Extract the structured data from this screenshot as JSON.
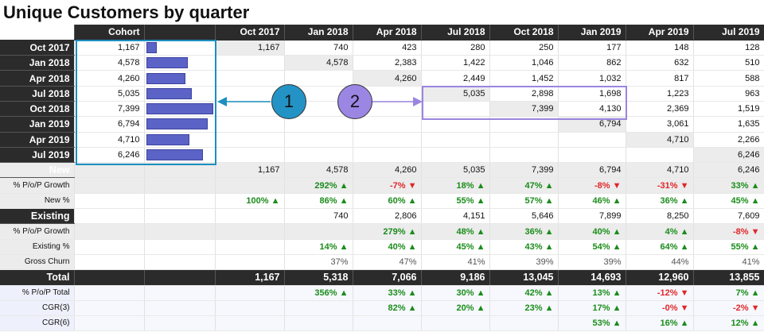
{
  "title": "Unique Customers by quarter",
  "header": {
    "cohort_label": "Cohort",
    "columns": [
      "Oct 2017",
      "Jan 2018",
      "Apr 2018",
      "Jul 2018",
      "Oct 2018",
      "Jan 2019",
      "Apr 2019",
      "Jul 2019"
    ]
  },
  "cohorts": [
    {
      "label": "Oct 2017",
      "size": "1,167",
      "bar": 0.16,
      "values": [
        "1,167",
        "740",
        "423",
        "280",
        "250",
        "177",
        "148",
        "128"
      ]
    },
    {
      "label": "Jan 2018",
      "size": "4,578",
      "bar": 0.62,
      "values": [
        "",
        "4,578",
        "2,383",
        "1,422",
        "1,046",
        "862",
        "632",
        "510"
      ]
    },
    {
      "label": "Apr 2018",
      "size": "4,260",
      "bar": 0.58,
      "values": [
        "",
        "",
        "4,260",
        "2,449",
        "1,452",
        "1,032",
        "817",
        "588"
      ]
    },
    {
      "label": "Jul 2018",
      "size": "5,035",
      "bar": 0.68,
      "values": [
        "",
        "",
        "",
        "5,035",
        "2,898",
        "1,698",
        "1,223",
        "963"
      ]
    },
    {
      "label": "Oct 2018",
      "size": "7,399",
      "bar": 1.0,
      "values": [
        "",
        "",
        "",
        "",
        "7,399",
        "4,130",
        "2,369",
        "1,519"
      ]
    },
    {
      "label": "Jan 2019",
      "size": "6,794",
      "bar": 0.92,
      "values": [
        "",
        "",
        "",
        "",
        "",
        "6,794",
        "3,061",
        "1,635"
      ]
    },
    {
      "label": "Apr 2019",
      "size": "4,710",
      "bar": 0.64,
      "values": [
        "",
        "",
        "",
        "",
        "",
        "",
        "4,710",
        "2,266"
      ]
    },
    {
      "label": "Jul 2019",
      "size": "6,246",
      "bar": 0.85,
      "values": [
        "",
        "",
        "",
        "",
        "",
        "",
        "",
        "6,246"
      ]
    }
  ],
  "new": {
    "label": "New",
    "values": [
      "1,167",
      "4,578",
      "4,260",
      "5,035",
      "7,399",
      "6,794",
      "4,710",
      "6,246"
    ]
  },
  "new_growth": {
    "label": "% P/o/P Growth",
    "values": [
      "",
      "292% ▲",
      "-7% ▼",
      "18% ▲",
      "47% ▲",
      "-8% ▼",
      "-31% ▼",
      "33% ▲"
    ]
  },
  "new_pct": {
    "label": "New %",
    "values": [
      "100% ▲",
      "86% ▲",
      "60% ▲",
      "55% ▲",
      "57% ▲",
      "46% ▲",
      "36% ▲",
      "45% ▲"
    ]
  },
  "existing": {
    "label": "Existing",
    "values": [
      "",
      "740",
      "2,806",
      "4,151",
      "5,646",
      "7,899",
      "8,250",
      "7,609"
    ]
  },
  "existing_growth": {
    "label": "% P/o/P Growth",
    "values": [
      "",
      "",
      "279% ▲",
      "48% ▲",
      "36% ▲",
      "40% ▲",
      "4% ▲",
      "-8% ▼"
    ]
  },
  "existing_pct": {
    "label": "Existing %",
    "values": [
      "",
      "14% ▲",
      "40% ▲",
      "45% ▲",
      "43% ▲",
      "54% ▲",
      "64% ▲",
      "55% ▲"
    ]
  },
  "gross_churn": {
    "label": "Gross Churn",
    "values": [
      "",
      "37%",
      "47%",
      "41%",
      "39%",
      "39%",
      "44%",
      "41%"
    ]
  },
  "total": {
    "label": "Total",
    "values": [
      "1,167",
      "5,318",
      "7,066",
      "9,186",
      "13,045",
      "14,693",
      "12,960",
      "13,855"
    ]
  },
  "total_growth": {
    "label": "% P/o/P Total",
    "values": [
      "",
      "356% ▲",
      "33% ▲",
      "30% ▲",
      "42% ▲",
      "13% ▲",
      "-12% ▼",
      "7% ▲"
    ]
  },
  "cgr3": {
    "label": "CGR(3)",
    "values": [
      "",
      "",
      "82% ▲",
      "20% ▲",
      "23% ▲",
      "17% ▲",
      "-0% ▼",
      "-2% ▼"
    ]
  },
  "cgr6": {
    "label": "CGR(6)",
    "values": [
      "",
      "",
      "",
      "",
      "",
      "53% ▲",
      "16% ▲",
      "12% ▲"
    ]
  },
  "callouts": {
    "one": "1",
    "two": "2"
  },
  "colors": {
    "bar": "#5b63c6",
    "callout_1": "#2393c5",
    "callout_2": "#9c86e4",
    "positive": "#1a8c1a",
    "negative": "#e0262a"
  }
}
